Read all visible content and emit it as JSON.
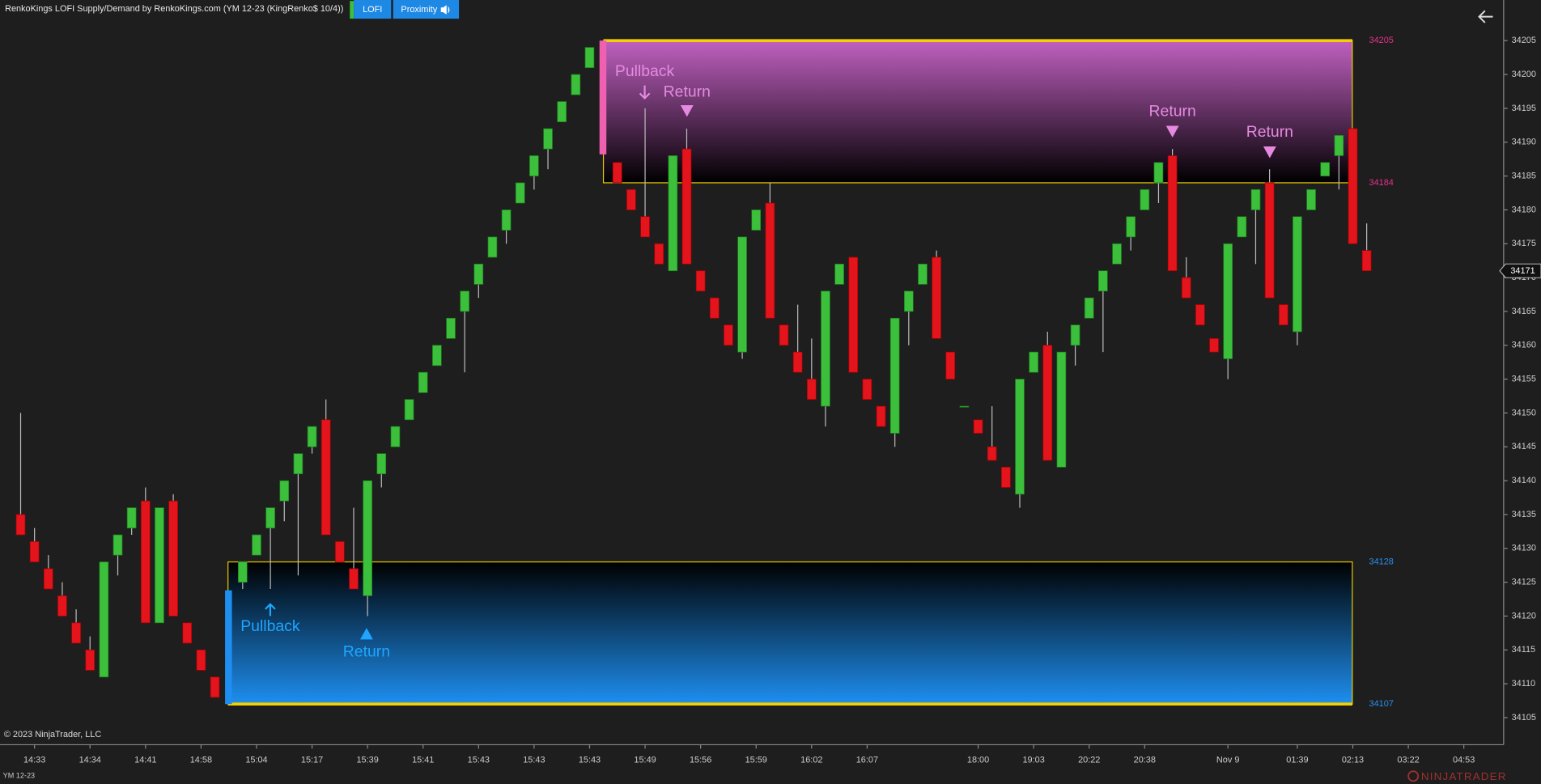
{
  "header": {
    "title": "RenkoKings LOFI Supply/Demand by RenkoKings.com (YM 12-23 (KingRenko$ 10/4))",
    "buttons": [
      "LOFI",
      "Proximity"
    ]
  },
  "footer": {
    "copyright": "© 2023 NinjaTrader, LLC",
    "instrument": "YM 12-23",
    "logo": "NINJATRADER"
  },
  "chart_data": {
    "type": "candlestick",
    "up_color": "#3cc03c",
    "down_color": "#e3141c",
    "categories": [
      null,
      "14:33",
      null,
      null,
      null,
      "14:34",
      null,
      null,
      null,
      "14:41",
      null,
      null,
      null,
      "14:58",
      null,
      null,
      null,
      "15:04",
      null,
      null,
      null,
      "15:17",
      null,
      null,
      null,
      "15:39",
      null,
      null,
      null,
      "15:41",
      null,
      null,
      null,
      "15:43",
      null,
      null,
      null,
      "15:43",
      null,
      null,
      null,
      "15:43",
      null,
      null,
      null,
      "15:49",
      null,
      null,
      null,
      "15:56",
      null,
      null,
      null,
      "15:59",
      null,
      null,
      null,
      "16:02",
      null,
      null,
      null,
      "16:07",
      null,
      null,
      null,
      null,
      null,
      null,
      null,
      "18:00",
      null,
      null,
      null,
      "19:03",
      null,
      null,
      null,
      "20:22",
      null,
      null,
      null,
      "20:38",
      null,
      null,
      null,
      null,
      null,
      "Nov 9",
      null,
      null,
      null,
      null,
      "01:39",
      null,
      null,
      null,
      "02:13",
      null,
      null,
      null,
      "03:22",
      null,
      null,
      null,
      "04:53"
    ],
    "open": [
      34135,
      34131,
      34127,
      34123,
      34119,
      34115,
      34111,
      34129,
      34133,
      34137,
      34119,
      34137,
      34119,
      34115,
      34111,
      null,
      34125,
      34129,
      34133,
      34137,
      34141,
      34145,
      34149,
      34131,
      34127,
      34123,
      34141,
      34145,
      34149,
      34153,
      34157,
      34161,
      34165,
      34169,
      34173,
      34177,
      34181,
      34185,
      34189,
      34193,
      34197,
      34201,
      null,
      34187,
      34183,
      34179,
      34175,
      34171,
      34189,
      34171,
      34167,
      34163,
      34159,
      34177,
      34181,
      34163,
      34159,
      34155,
      34151,
      34169,
      34173,
      34155,
      34151,
      34147,
      34165,
      34169,
      34173,
      34159,
      34151,
      34149,
      34145,
      34142,
      34138,
      34156,
      34160,
      34142,
      34160,
      34164,
      34168,
      34172,
      34176,
      34180,
      34184,
      34188,
      34170,
      34166,
      34161,
      34158,
      34176,
      34180,
      34184,
      34166,
      34162,
      34180,
      34185,
      34188,
      34192,
      34174,
      null,
      null,
      null,
      null,
      null,
      null,
      null
    ],
    "high": [
      34150,
      34133,
      34129,
      34125,
      34121,
      34117,
      34128,
      34132,
      34136,
      34139,
      34136,
      34138,
      34119,
      34115,
      34111,
      null,
      34128,
      34132,
      34136,
      34140,
      34144,
      34148,
      34152,
      34131,
      34136,
      34140,
      34144,
      34148,
      34152,
      34156,
      34160,
      34164,
      34168,
      34172,
      34176,
      34180,
      34184,
      34188,
      34192,
      34196,
      34200,
      34204,
      null,
      34187,
      34183,
      34195,
      34175,
      34188,
      34192,
      34171,
      34167,
      34163,
      34176,
      34180,
      34184,
      34163,
      34166,
      34161,
      34168,
      34172,
      34173,
      34155,
      34151,
      34164,
      34168,
      34172,
      34174,
      34159,
      34151,
      34149,
      34151,
      34142,
      34155,
      34159,
      34162,
      34159,
      34163,
      34167,
      34171,
      34175,
      34179,
      34183,
      34187,
      34189,
      34173,
      34166,
      34161,
      34175,
      34179,
      34183,
      34186,
      34166,
      34179,
      34183,
      34187,
      34191,
      34192,
      34178,
      null,
      null,
      null,
      null,
      null,
      null,
      null
    ],
    "low": [
      34132,
      34128,
      34124,
      34120,
      34116,
      34112,
      34111,
      34126,
      34132,
      34119,
      34119,
      34120,
      34116,
      34112,
      34108,
      null,
      34124,
      34129,
      34124,
      34134,
      34126,
      34144,
      34132,
      34128,
      34124,
      34120,
      34139,
      34145,
      34149,
      34153,
      34157,
      34161,
      34156,
      34167,
      34173,
      34175,
      34181,
      34183,
      34186,
      34193,
      34197,
      34201,
      null,
      34184,
      34180,
      34176,
      34172,
      34171,
      34172,
      34168,
      34164,
      34160,
      34158,
      34177,
      34164,
      34160,
      34156,
      34152,
      34148,
      34169,
      34156,
      34152,
      34148,
      34145,
      34160,
      34169,
      34161,
      34155,
      34151,
      34147,
      34143,
      34139,
      34136,
      34156,
      34143,
      34142,
      34157,
      34164,
      34159,
      34172,
      34174,
      34180,
      34181,
      34171,
      34167,
      34163,
      34159,
      34155,
      34176,
      34172,
      34167,
      34163,
      34160,
      34180,
      34185,
      34183,
      34175,
      34171,
      null,
      null,
      null,
      null,
      null,
      null,
      null
    ],
    "close": [
      34132,
      34128,
      34124,
      34120,
      34116,
      34112,
      34128,
      34132,
      34136,
      34119,
      34136,
      34120,
      34116,
      34112,
      34108,
      null,
      34128,
      34132,
      34136,
      34140,
      34144,
      34148,
      34132,
      34128,
      34124,
      34140,
      34144,
      34148,
      34152,
      34156,
      34160,
      34164,
      34168,
      34172,
      34176,
      34180,
      34184,
      34188,
      34192,
      34196,
      34200,
      34204,
      null,
      34184,
      34180,
      34176,
      34172,
      34188,
      34172,
      34168,
      34164,
      34160,
      34176,
      34180,
      34164,
      34160,
      34156,
      34152,
      34168,
      34172,
      34156,
      34152,
      34148,
      34164,
      34168,
      34172,
      34161,
      34155,
      34151,
      34147,
      34143,
      34139,
      34155,
      34159,
      34143,
      34159,
      34163,
      34167,
      34171,
      34175,
      34179,
      34183,
      34187,
      34171,
      34167,
      34163,
      34159,
      34175,
      34179,
      34183,
      34167,
      34163,
      34179,
      34183,
      34187,
      34191,
      34175,
      34171,
      null,
      null,
      null,
      null,
      null,
      null,
      null
    ],
    "ylim": [
      34101,
      34211
    ],
    "yticks": [
      34105,
      34110,
      34115,
      34120,
      34125,
      34130,
      34135,
      34140,
      34145,
      34150,
      34155,
      34160,
      34165,
      34170,
      34175,
      34180,
      34185,
      34190,
      34195,
      34200,
      34205
    ],
    "last_price": 34171,
    "zones": [
      {
        "top": 34205,
        "bottom": 34184,
        "color": "#c060c0",
        "label_color": "#e8308f"
      },
      {
        "top": 34128,
        "bottom": 34107,
        "color": "#1e8ff0",
        "label_color": "#2a8ff0"
      }
    ],
    "annotations": [
      {
        "text": "Pullback"
      },
      {
        "text": "Return"
      },
      {
        "text": "Return"
      },
      {
        "text": "Return"
      },
      {
        "text": "Pullback"
      },
      {
        "text": "Return"
      }
    ]
  }
}
